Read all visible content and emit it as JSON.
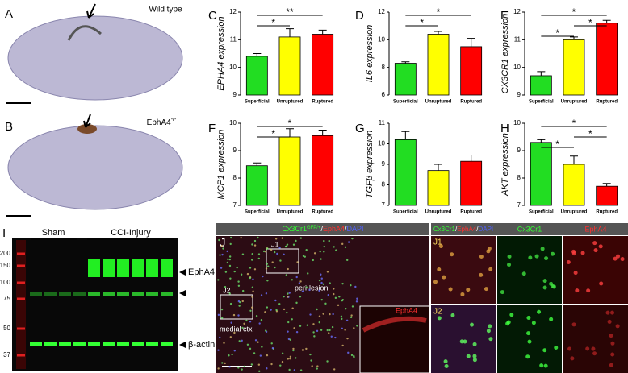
{
  "panels": {
    "a": {
      "letter": "A",
      "label": "Wild type"
    },
    "b": {
      "letter": "B",
      "label": "EphA4",
      "label_sup": "-/-"
    },
    "i": {
      "letter": "I",
      "groups": [
        "Sham",
        "CCI-Injury"
      ],
      "ladder": [
        200,
        150,
        100,
        75,
        50,
        37
      ],
      "bands": [
        "EphA4",
        "β-actin"
      ]
    },
    "j": {
      "letter": "J",
      "title_parts": [
        "Cx3Cr1",
        "GFP/+",
        "/",
        "EphA4",
        "/",
        "DAPI"
      ],
      "labels": [
        "J1",
        "J2",
        "peri-lesion",
        "medial ctx"
      ],
      "inset": "EphA4",
      "side_title_parts": [
        "Cx3Cr1",
        "/",
        "EphA4",
        "/",
        "DAPI"
      ],
      "side_headers": [
        "Cx3Cr1",
        "EphA4"
      ],
      "side_labels": [
        "J1",
        "J2"
      ]
    }
  },
  "chart_data": [
    {
      "type": "bar",
      "letter": "C",
      "ylabel": "EPHA4 expression",
      "categories": [
        "Superficial",
        "Unruptured",
        "Ruptured"
      ],
      "values": [
        10.4,
        11.1,
        11.2
      ],
      "errors": [
        0.1,
        0.3,
        0.15
      ],
      "colors": [
        "#22dd22",
        "#ffff00",
        "#ff0000"
      ],
      "ylim": [
        9,
        12
      ],
      "yticks": [
        9,
        10,
        11,
        12
      ],
      "significance": [
        {
          "label": "*",
          "between": [
            "Superficial",
            "Unruptured"
          ]
        },
        {
          "label": "**",
          "between": [
            "Superficial",
            "Ruptured"
          ]
        }
      ]
    },
    {
      "type": "bar",
      "letter": "D",
      "ylabel": "IL6 expression",
      "categories": [
        "Superficial",
        "Unruptured",
        "Ruptured"
      ],
      "values": [
        8.3,
        10.4,
        9.5
      ],
      "errors": [
        0.1,
        0.2,
        0.6
      ],
      "colors": [
        "#22dd22",
        "#ffff00",
        "#ff0000"
      ],
      "ylim": [
        6,
        12
      ],
      "yticks": [
        6,
        8,
        10,
        12
      ],
      "significance": [
        {
          "label": "*",
          "between": [
            "Superficial",
            "Unruptured"
          ]
        },
        {
          "label": "*",
          "between": [
            "Superficial",
            "Ruptured"
          ]
        }
      ]
    },
    {
      "type": "bar",
      "letter": "E",
      "ylabel": "CX3CR1 expression",
      "categories": [
        "Superficial",
        "Unruptured",
        "Ruptured"
      ],
      "values": [
        9.7,
        11.0,
        11.6
      ],
      "errors": [
        0.15,
        0.1,
        0.1
      ],
      "colors": [
        "#22dd22",
        "#ffff00",
        "#ff0000"
      ],
      "ylim": [
        9,
        12
      ],
      "yticks": [
        9,
        10,
        11,
        12
      ],
      "significance": [
        {
          "label": "*",
          "between": [
            "Superficial",
            "Unruptured"
          ]
        },
        {
          "label": "*",
          "between": [
            "Unruptured",
            "Ruptured"
          ]
        },
        {
          "label": "*",
          "between": [
            "Superficial",
            "Ruptured"
          ]
        }
      ]
    },
    {
      "type": "bar",
      "letter": "F",
      "ylabel": "MCP1 expression",
      "categories": [
        "Superficial",
        "Unruptured",
        "Ruptured"
      ],
      "values": [
        8.45,
        9.5,
        9.55
      ],
      "errors": [
        0.1,
        0.3,
        0.2
      ],
      "colors": [
        "#22dd22",
        "#ffff00",
        "#ff0000"
      ],
      "ylim": [
        7,
        10
      ],
      "yticks": [
        7,
        8,
        9,
        10
      ],
      "significance": [
        {
          "label": "*",
          "between": [
            "Superficial",
            "Unruptured"
          ]
        },
        {
          "label": "*",
          "between": [
            "Superficial",
            "Ruptured"
          ]
        }
      ]
    },
    {
      "type": "bar",
      "letter": "G",
      "ylabel": "TGFβ expression",
      "categories": [
        "Superficial",
        "Unruptured",
        "Ruptured"
      ],
      "values": [
        10.2,
        8.7,
        9.15
      ],
      "errors": [
        0.4,
        0.3,
        0.3
      ],
      "colors": [
        "#22dd22",
        "#ffff00",
        "#ff0000"
      ],
      "ylim": [
        7,
        11
      ],
      "yticks": [
        7,
        8,
        9,
        10,
        11
      ],
      "significance": []
    },
    {
      "type": "bar",
      "letter": "H",
      "ylabel": "AKT expression",
      "categories": [
        "Superficial",
        "Unruptured",
        "Ruptured"
      ],
      "values": [
        9.3,
        8.5,
        7.7
      ],
      "errors": [
        0.1,
        0.3,
        0.1
      ],
      "colors": [
        "#22dd22",
        "#ffff00",
        "#ff0000"
      ],
      "ylim": [
        7,
        10
      ],
      "yticks": [
        7,
        8,
        9,
        10
      ],
      "significance": [
        {
          "label": "*",
          "between": [
            "Superficial",
            "Unruptured"
          ]
        },
        {
          "label": "*",
          "between": [
            "Unruptured",
            "Ruptured"
          ]
        },
        {
          "label": "*",
          "between": [
            "Superficial",
            "Ruptured"
          ]
        }
      ]
    }
  ]
}
